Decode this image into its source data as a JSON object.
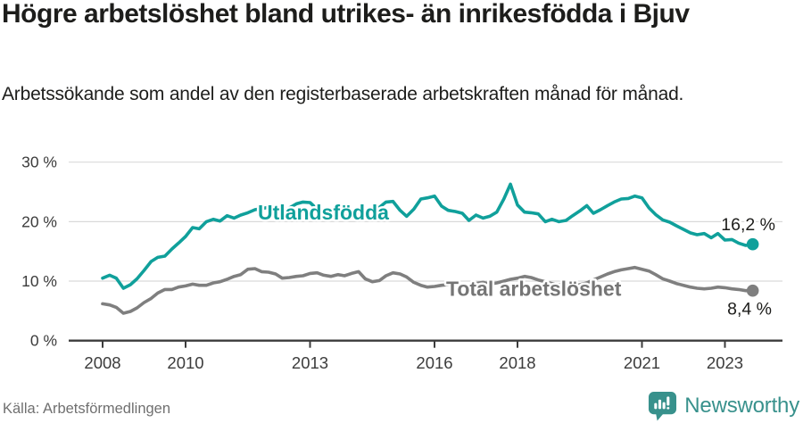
{
  "header": {
    "title": "Högre arbetslöshet bland utrikes- än inrikesfödda i Bjuv",
    "subtitle": "Arbetssökande som andel av den registerbaserade arbetskraften månad för månad."
  },
  "footer": {
    "source": "Källa: Arbetsförmedlingen",
    "brand": "Newsworthy"
  },
  "colors": {
    "accent_teal": "#10a09b",
    "line_gray": "#7f7f7f",
    "series_label_gray": "#757575",
    "grid": "#d9d9d9",
    "axis": "#3c3c3c",
    "text": "#1d1d1b",
    "muted": "#707070",
    "logo_teal": "#38918c"
  },
  "chart_data": {
    "type": "line",
    "title": "Högre arbetslöshet bland utrikes- än inrikesfödda i Bjuv",
    "subtitle": "Arbetssökande som andel av den registerbaserade arbetskraften månad för månad.",
    "grid": true,
    "legend_position": "inline-labels",
    "xlim": [
      2007.2,
      2024.4
    ],
    "ylim": [
      0,
      32
    ],
    "x_ticks": [
      {
        "year": 2008,
        "label": "2008"
      },
      {
        "year": 2010,
        "label": "2010"
      },
      {
        "year": 2013,
        "label": "2013"
      },
      {
        "year": 2016,
        "label": "2016"
      },
      {
        "year": 2018,
        "label": "2018"
      },
      {
        "year": 2021,
        "label": "2021"
      },
      {
        "year": 2023,
        "label": "2023"
      }
    ],
    "y_ticks": [
      {
        "value": 0,
        "label": "0 %"
      },
      {
        "value": 10,
        "label": "10 %"
      },
      {
        "value": 20,
        "label": "20 %"
      },
      {
        "value": 30,
        "label": "30 %"
      }
    ],
    "series": [
      {
        "name": "Utlandsfödda",
        "color": "#10a09b",
        "end_label": "16,2 %",
        "end_value": 16.2,
        "points": [
          [
            2008.0,
            10.5
          ],
          [
            2008.17,
            11.0
          ],
          [
            2008.33,
            10.5
          ],
          [
            2008.5,
            8.8
          ],
          [
            2008.67,
            9.4
          ],
          [
            2008.83,
            10.4
          ],
          [
            2009.0,
            11.8
          ],
          [
            2009.17,
            13.3
          ],
          [
            2009.33,
            14.0
          ],
          [
            2009.5,
            14.2
          ],
          [
            2009.67,
            15.4
          ],
          [
            2009.83,
            16.4
          ],
          [
            2010.0,
            17.5
          ],
          [
            2010.17,
            19.0
          ],
          [
            2010.33,
            18.8
          ],
          [
            2010.5,
            20.0
          ],
          [
            2010.67,
            20.4
          ],
          [
            2010.83,
            20.1
          ],
          [
            2011.0,
            21.0
          ],
          [
            2011.17,
            20.6
          ],
          [
            2011.33,
            21.1
          ],
          [
            2011.5,
            21.5
          ],
          [
            2011.67,
            22.0
          ],
          [
            2011.83,
            22.2
          ],
          [
            2012.0,
            22.4
          ],
          [
            2012.17,
            22.7
          ],
          [
            2012.33,
            21.7
          ],
          [
            2012.5,
            22.3
          ],
          [
            2012.67,
            23.0
          ],
          [
            2012.83,
            23.3
          ],
          [
            2013.0,
            23.2
          ],
          [
            2013.17,
            22.1
          ],
          [
            2013.33,
            21.1
          ],
          [
            2013.5,
            20.4
          ],
          [
            2013.67,
            21.3
          ],
          [
            2013.83,
            20.8
          ],
          [
            2014.0,
            21.1
          ],
          [
            2014.17,
            21.4
          ],
          [
            2014.33,
            21.6
          ],
          [
            2014.5,
            22.0
          ],
          [
            2014.67,
            22.4
          ],
          [
            2014.83,
            23.3
          ],
          [
            2015.0,
            23.4
          ],
          [
            2015.17,
            21.9
          ],
          [
            2015.33,
            20.9
          ],
          [
            2015.5,
            22.1
          ],
          [
            2015.67,
            23.8
          ],
          [
            2015.83,
            24.0
          ],
          [
            2016.0,
            24.3
          ],
          [
            2016.17,
            22.6
          ],
          [
            2016.33,
            21.9
          ],
          [
            2016.5,
            21.7
          ],
          [
            2016.67,
            21.4
          ],
          [
            2016.83,
            20.2
          ],
          [
            2017.0,
            21.1
          ],
          [
            2017.17,
            20.6
          ],
          [
            2017.33,
            20.9
          ],
          [
            2017.5,
            21.6
          ],
          [
            2017.67,
            23.8
          ],
          [
            2017.83,
            26.3
          ],
          [
            2018.0,
            22.8
          ],
          [
            2018.17,
            21.6
          ],
          [
            2018.33,
            21.5
          ],
          [
            2018.5,
            21.3
          ],
          [
            2018.67,
            20.0
          ],
          [
            2018.83,
            20.4
          ],
          [
            2019.0,
            20.0
          ],
          [
            2019.17,
            20.2
          ],
          [
            2019.33,
            21.0
          ],
          [
            2019.5,
            21.8
          ],
          [
            2019.67,
            22.7
          ],
          [
            2019.83,
            21.4
          ],
          [
            2020.0,
            22.0
          ],
          [
            2020.17,
            22.7
          ],
          [
            2020.33,
            23.3
          ],
          [
            2020.5,
            23.8
          ],
          [
            2020.67,
            23.9
          ],
          [
            2020.83,
            24.3
          ],
          [
            2021.0,
            24.0
          ],
          [
            2021.17,
            22.3
          ],
          [
            2021.33,
            21.2
          ],
          [
            2021.5,
            20.3
          ],
          [
            2021.67,
            19.9
          ],
          [
            2021.83,
            19.3
          ],
          [
            2022.0,
            18.7
          ],
          [
            2022.17,
            18.1
          ],
          [
            2022.33,
            17.8
          ],
          [
            2022.5,
            18.0
          ],
          [
            2022.67,
            17.3
          ],
          [
            2022.83,
            18.0
          ],
          [
            2023.0,
            16.9
          ],
          [
            2023.17,
            17.0
          ],
          [
            2023.33,
            16.4
          ],
          [
            2023.5,
            16.0
          ],
          [
            2023.67,
            16.2
          ]
        ]
      },
      {
        "name": "Total arbetslöshet",
        "color": "#7f7f7f",
        "end_label": "8,4 %",
        "end_value": 8.4,
        "points": [
          [
            2008.0,
            6.2
          ],
          [
            2008.17,
            6.0
          ],
          [
            2008.33,
            5.6
          ],
          [
            2008.5,
            4.6
          ],
          [
            2008.67,
            4.9
          ],
          [
            2008.83,
            5.5
          ],
          [
            2009.0,
            6.4
          ],
          [
            2009.17,
            7.1
          ],
          [
            2009.33,
            8.0
          ],
          [
            2009.5,
            8.6
          ],
          [
            2009.67,
            8.6
          ],
          [
            2009.83,
            9.0
          ],
          [
            2010.0,
            9.2
          ],
          [
            2010.17,
            9.5
          ],
          [
            2010.33,
            9.3
          ],
          [
            2010.5,
            9.3
          ],
          [
            2010.67,
            9.7
          ],
          [
            2010.83,
            9.9
          ],
          [
            2011.0,
            10.3
          ],
          [
            2011.17,
            10.8
          ],
          [
            2011.33,
            11.1
          ],
          [
            2011.5,
            12.0
          ],
          [
            2011.67,
            12.1
          ],
          [
            2011.83,
            11.6
          ],
          [
            2012.0,
            11.5
          ],
          [
            2012.17,
            11.2
          ],
          [
            2012.33,
            10.5
          ],
          [
            2012.5,
            10.6
          ],
          [
            2012.67,
            10.8
          ],
          [
            2012.83,
            10.9
          ],
          [
            2013.0,
            11.3
          ],
          [
            2013.17,
            11.4
          ],
          [
            2013.33,
            11.0
          ],
          [
            2013.5,
            10.8
          ],
          [
            2013.67,
            11.1
          ],
          [
            2013.83,
            10.9
          ],
          [
            2014.0,
            11.3
          ],
          [
            2014.17,
            11.6
          ],
          [
            2014.33,
            10.4
          ],
          [
            2014.5,
            9.9
          ],
          [
            2014.67,
            10.1
          ],
          [
            2014.83,
            10.9
          ],
          [
            2015.0,
            11.4
          ],
          [
            2015.17,
            11.2
          ],
          [
            2015.33,
            10.7
          ],
          [
            2015.5,
            9.8
          ],
          [
            2015.67,
            9.3
          ],
          [
            2015.83,
            9.0
          ],
          [
            2016.0,
            9.1
          ],
          [
            2016.17,
            9.3
          ],
          [
            2016.33,
            9.4
          ],
          [
            2016.5,
            9.5
          ],
          [
            2016.67,
            9.3
          ],
          [
            2016.83,
            9.2
          ],
          [
            2017.0,
            9.6
          ],
          [
            2017.17,
            9.8
          ],
          [
            2017.33,
            9.5
          ],
          [
            2017.5,
            9.7
          ],
          [
            2017.67,
            10.0
          ],
          [
            2017.83,
            10.3
          ],
          [
            2018.0,
            10.5
          ],
          [
            2018.17,
            10.8
          ],
          [
            2018.33,
            10.6
          ],
          [
            2018.5,
            10.2
          ],
          [
            2018.67,
            9.9
          ],
          [
            2018.83,
            9.6
          ],
          [
            2019.0,
            9.4
          ],
          [
            2019.17,
            9.3
          ],
          [
            2019.33,
            9.3
          ],
          [
            2019.5,
            9.4
          ],
          [
            2019.67,
            9.7
          ],
          [
            2019.83,
            10.2
          ],
          [
            2020.0,
            10.7
          ],
          [
            2020.17,
            11.2
          ],
          [
            2020.33,
            11.6
          ],
          [
            2020.5,
            11.9
          ],
          [
            2020.67,
            12.1
          ],
          [
            2020.83,
            12.3
          ],
          [
            2021.0,
            12.0
          ],
          [
            2021.17,
            11.7
          ],
          [
            2021.33,
            11.1
          ],
          [
            2021.5,
            10.4
          ],
          [
            2021.67,
            10.0
          ],
          [
            2021.83,
            9.6
          ],
          [
            2022.0,
            9.3
          ],
          [
            2022.17,
            9.0
          ],
          [
            2022.33,
            8.8
          ],
          [
            2022.5,
            8.7
          ],
          [
            2022.67,
            8.8
          ],
          [
            2022.83,
            9.0
          ],
          [
            2023.0,
            8.9
          ],
          [
            2023.17,
            8.7
          ],
          [
            2023.33,
            8.6
          ],
          [
            2023.5,
            8.4
          ],
          [
            2023.67,
            8.4
          ]
        ]
      }
    ]
  }
}
